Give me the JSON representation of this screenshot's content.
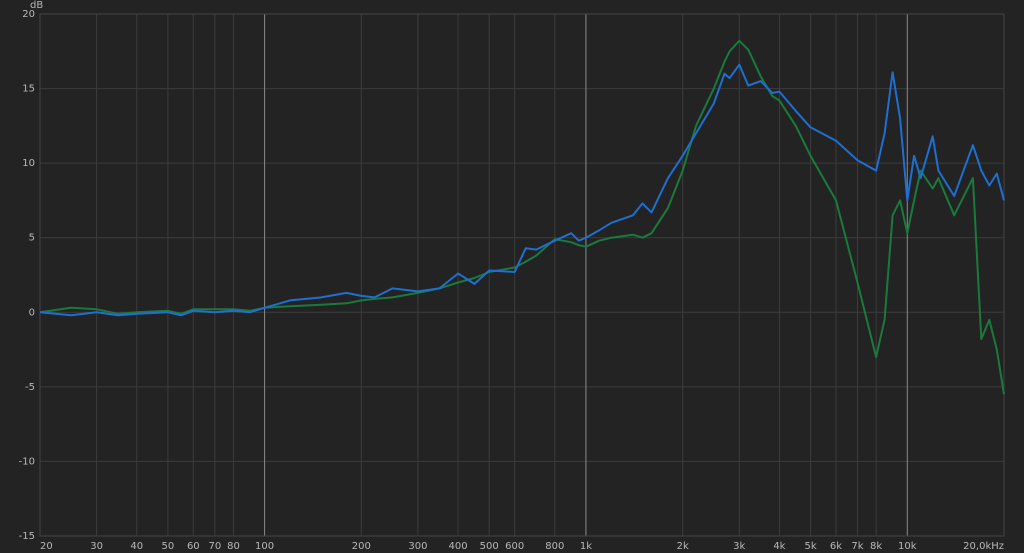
{
  "chart_data": {
    "type": "line",
    "y_label": "dB",
    "xscale": "log",
    "grid": true,
    "xlim": [
      20,
      20000
    ],
    "ylim": [
      -15,
      20
    ],
    "yticks": [
      20,
      15,
      10,
      5,
      0,
      -5,
      -10,
      -15
    ],
    "xticks": [
      20,
      30,
      40,
      50,
      60,
      70,
      80,
      100,
      200,
      300,
      400,
      500,
      600,
      800,
      {
        "value": 1000,
        "label": "1k"
      },
      {
        "value": 2000,
        "label": "2k"
      },
      {
        "value": 3000,
        "label": "3k"
      },
      {
        "value": 4000,
        "label": "4k"
      },
      {
        "value": 5000,
        "label": "5k"
      },
      {
        "value": 6000,
        "label": "6k"
      },
      {
        "value": 7000,
        "label": "7k"
      },
      {
        "value": 8000,
        "label": "8k"
      },
      {
        "value": 10000,
        "label": "10k"
      },
      {
        "value": 20000,
        "label": "20,0kHz"
      }
    ],
    "x": [
      20,
      25,
      30,
      35,
      40,
      50,
      55,
      60,
      70,
      80,
      90,
      100,
      120,
      150,
      180,
      200,
      220,
      250,
      300,
      350,
      400,
      450,
      500,
      600,
      650,
      700,
      800,
      900,
      950,
      1000,
      1100,
      1200,
      1400,
      1500,
      1600,
      1800,
      2000,
      2200,
      2500,
      2700,
      2800,
      3000,
      3200,
      3500,
      3800,
      4000,
      4500,
      5000,
      6000,
      7000,
      8000,
      8500,
      9000,
      9500,
      10000,
      10500,
      11000,
      12000,
      12500,
      14000,
      16000,
      17000,
      18000,
      19000,
      20000
    ],
    "series": [
      {
        "color": "#1a7a3c",
        "values": [
          0,
          0.3,
          0.2,
          -0.1,
          0,
          0.1,
          -0.1,
          0.2,
          0.2,
          0.2,
          0.1,
          0.3,
          0.4,
          0.5,
          0.6,
          0.8,
          0.9,
          1.0,
          1.3,
          1.6,
          2.0,
          2.3,
          2.7,
          3.0,
          3.4,
          3.8,
          4.9,
          4.7,
          4.5,
          4.4,
          4.8,
          5.0,
          5.2,
          5.0,
          5.3,
          7.0,
          9.5,
          12.5,
          15.0,
          16.8,
          17.5,
          18.2,
          17.6,
          15.8,
          14.5,
          14.2,
          12.5,
          10.5,
          7.5,
          2.0,
          -3.0,
          -0.5,
          6.5,
          7.5,
          5.3,
          7.5,
          9.5,
          8.3,
          9.0,
          6.5,
          9.0,
          -1.8,
          -0.5,
          -2.5,
          -5.5
        ]
      },
      {
        "color": "#1e6fd2",
        "values": [
          0,
          -0.2,
          0,
          -0.2,
          -0.1,
          0,
          -0.2,
          0.1,
          0,
          0.1,
          0,
          0.3,
          0.8,
          1.0,
          1.3,
          1.1,
          1.0,
          1.6,
          1.4,
          1.6,
          2.6,
          1.9,
          2.8,
          2.7,
          4.3,
          4.2,
          4.8,
          5.3,
          4.8,
          5.0,
          5.5,
          6.0,
          6.5,
          7.3,
          6.7,
          9.0,
          10.5,
          12.0,
          14.0,
          16.0,
          15.7,
          16.6,
          15.2,
          15.5,
          14.7,
          14.8,
          13.5,
          12.4,
          11.5,
          10.2,
          9.5,
          12.0,
          16.1,
          13.0,
          7.5,
          10.5,
          9.0,
          11.8,
          9.5,
          7.8,
          11.2,
          9.5,
          8.5,
          9.3,
          7.5
        ]
      }
    ]
  }
}
